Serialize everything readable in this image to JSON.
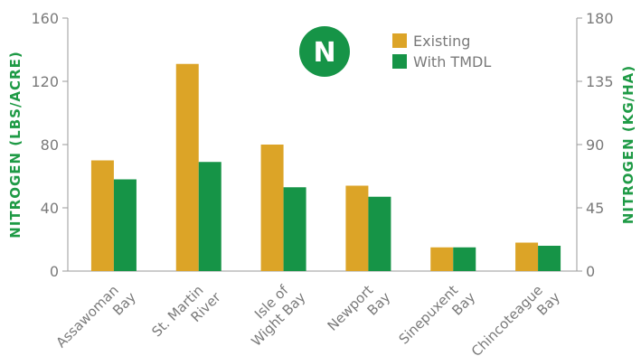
{
  "chart_data": {
    "type": "bar",
    "categories": [
      [
        "Assawoman",
        "Bay"
      ],
      [
        "St. Martin",
        "River"
      ],
      [
        "Isle of",
        "Wight Bay"
      ],
      [
        "Newport",
        "Bay"
      ],
      [
        "Sinepuxent",
        "Bay"
      ],
      [
        "Chincoteague",
        "Bay"
      ]
    ],
    "series": [
      {
        "name": "Existing",
        "color": "#dca427",
        "values": [
          70,
          131,
          80,
          54,
          15,
          18
        ]
      },
      {
        "name": "With TMDL",
        "color": "#169447",
        "values": [
          58,
          69,
          53,
          47,
          15,
          16
        ]
      }
    ],
    "ylabel": "NITROGEN (LBS/ACRE)",
    "y2label": "NITROGEN (KG/HA)",
    "ylim": [
      0,
      160
    ],
    "y2lim": [
      0,
      180
    ],
    "yticks": [
      0,
      40,
      80,
      120,
      160
    ],
    "y2ticks": [
      0,
      45,
      90,
      135,
      180
    ],
    "badge": "N",
    "legend_position": "top-right",
    "grid": false
  }
}
